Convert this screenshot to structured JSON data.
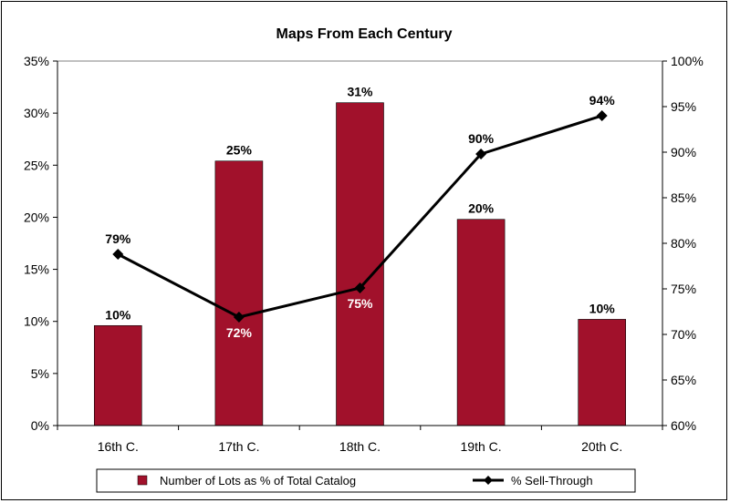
{
  "chart_data": {
    "type": "bar",
    "title": "Maps From Each Century",
    "categories": [
      "16th C.",
      "17th C.",
      "18th C.",
      "19th C.",
      "20th C."
    ],
    "y_left": {
      "ylim": [
        0,
        35
      ],
      "ticks": [
        0,
        5,
        10,
        15,
        20,
        25,
        30,
        35
      ],
      "suffix": "%"
    },
    "y_right": {
      "ylim": [
        60,
        100
      ],
      "ticks": [
        60,
        65,
        70,
        75,
        80,
        85,
        90,
        95,
        100
      ],
      "suffix": "%"
    },
    "series": [
      {
        "name": "Number of Lots as % of Total Catalog",
        "type": "bar",
        "axis": "left",
        "color": "#a1112b",
        "values": [
          9.6,
          25.4,
          31.0,
          19.8,
          10.2
        ],
        "labels": [
          "10%",
          "25%",
          "31%",
          "20%",
          "10%"
        ]
      },
      {
        "name": "% Sell-Through",
        "type": "line",
        "axis": "right",
        "color": "#000000",
        "values": [
          78.8,
          71.9,
          75.1,
          89.8,
          94.0
        ],
        "labels": [
          "79%",
          "72%",
          "75%",
          "90%",
          "94%"
        ],
        "label_colors": [
          "#000000",
          "#ffffff",
          "#ffffff",
          "#000000",
          "#000000"
        ]
      }
    ],
    "grid": false,
    "legend": "bottom"
  }
}
